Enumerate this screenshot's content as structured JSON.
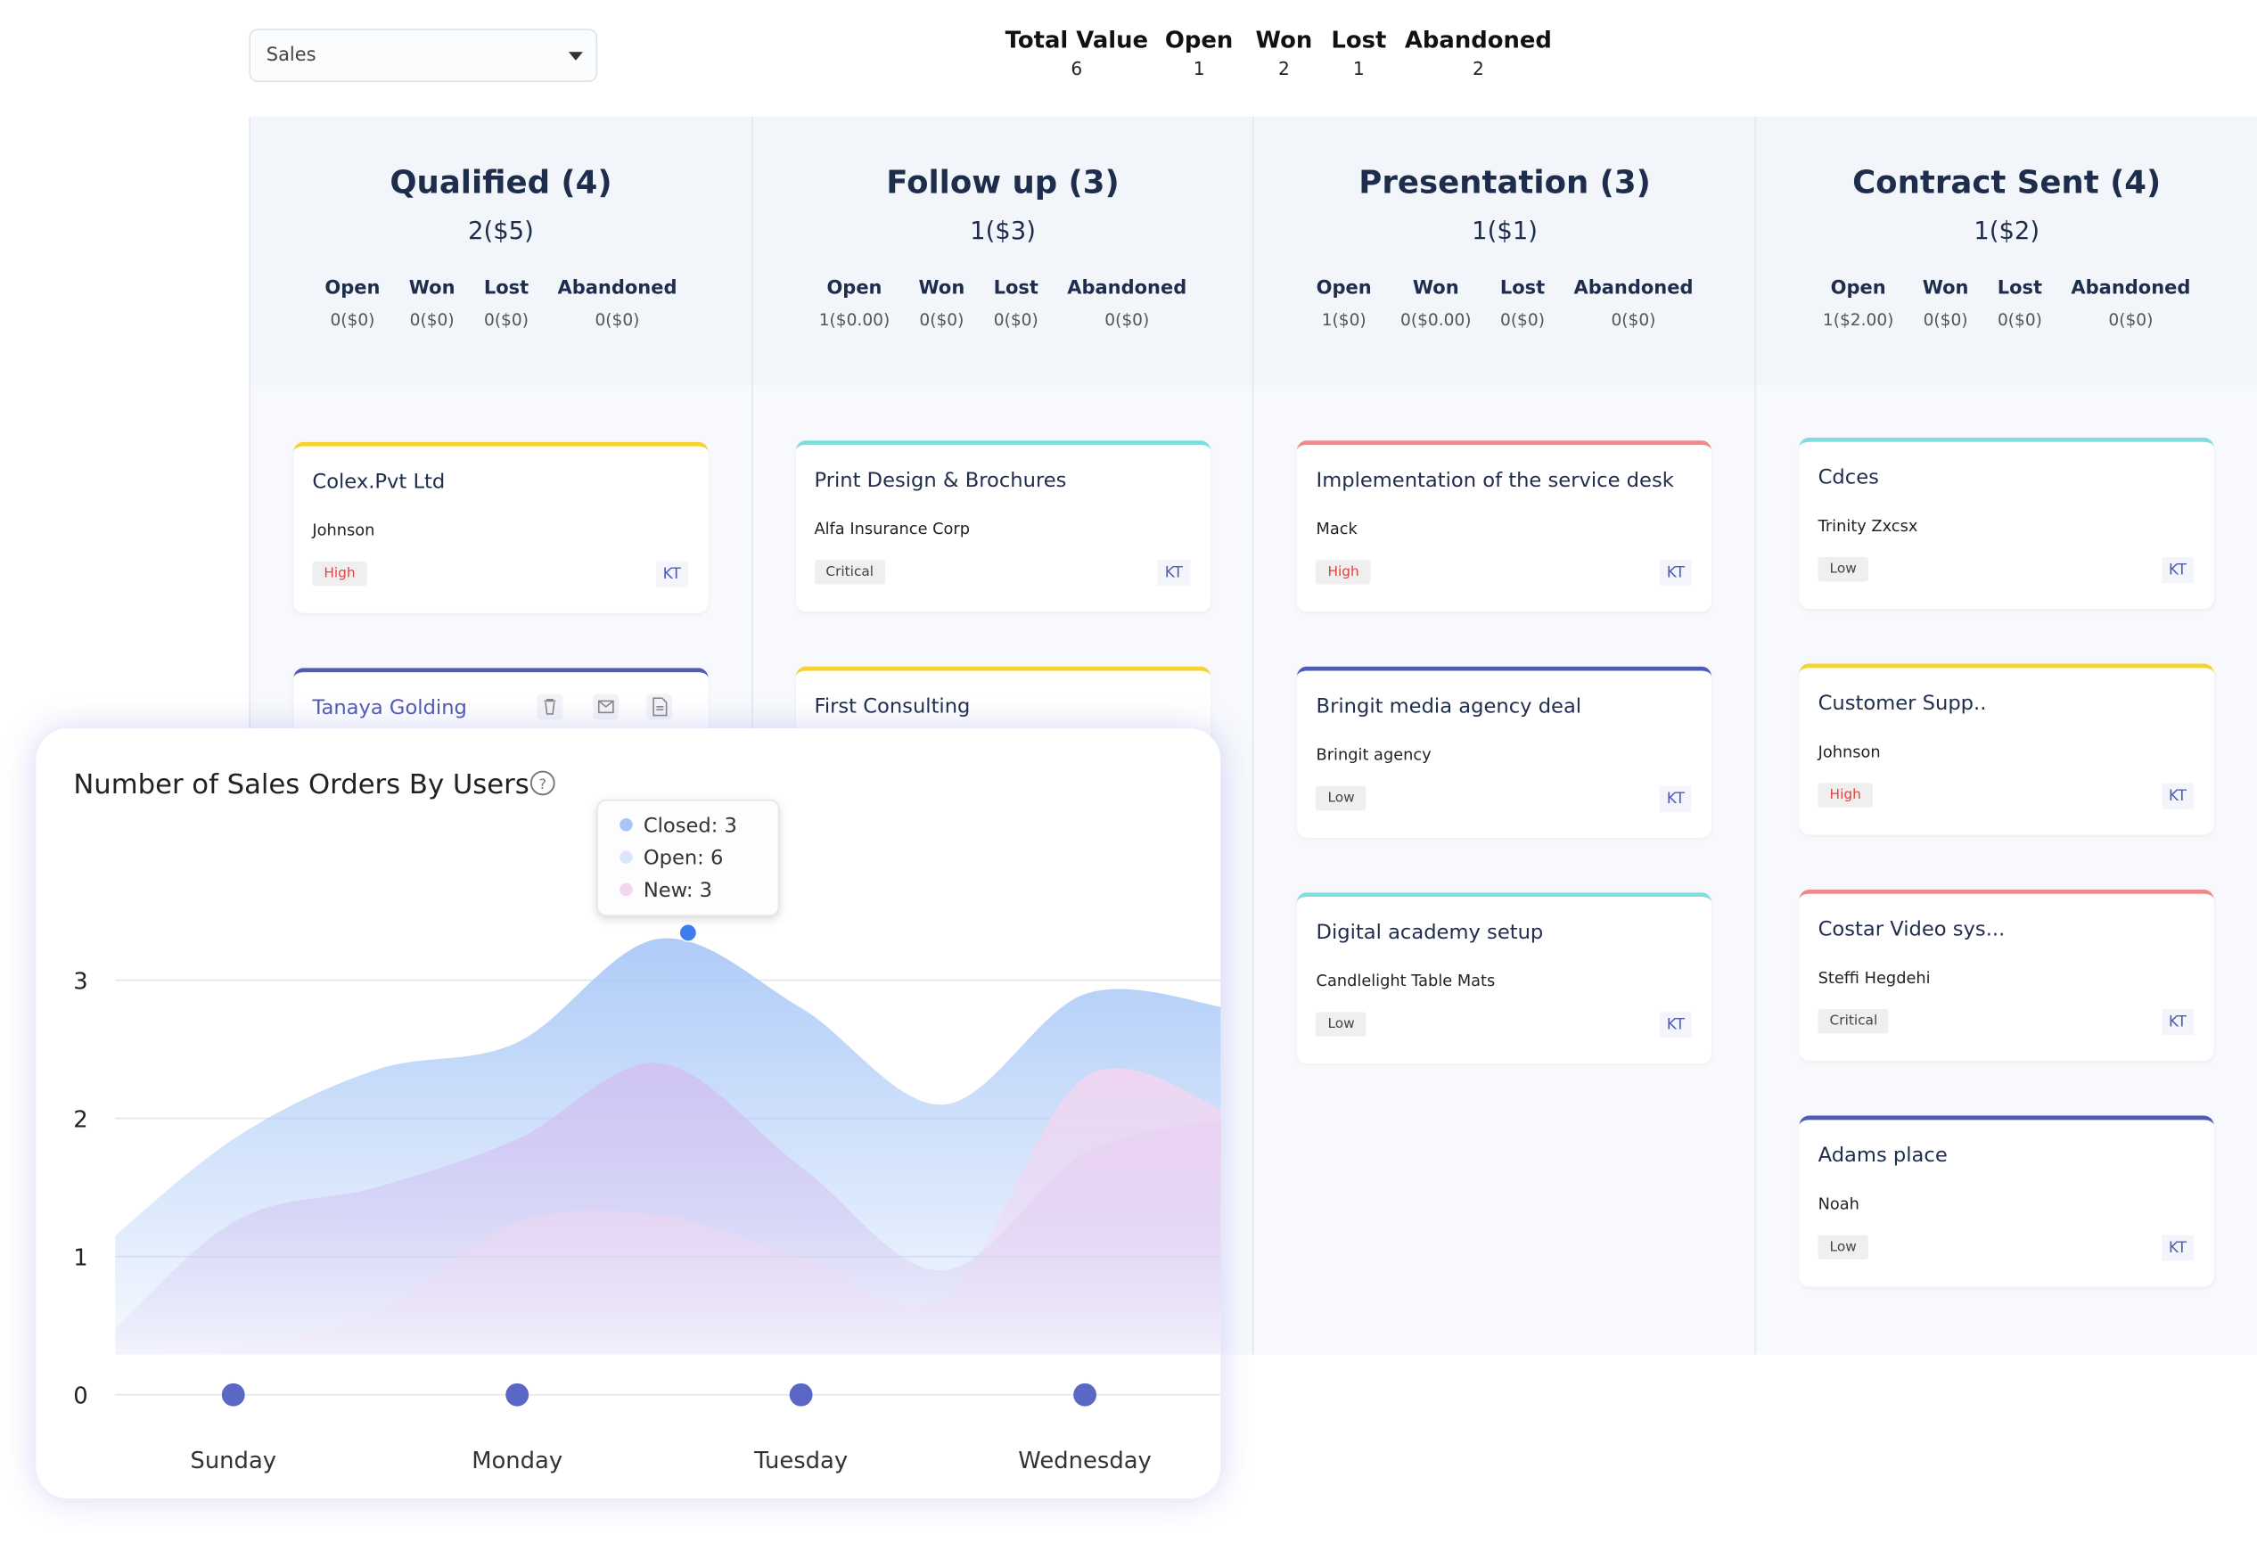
{
  "filter": "Sales",
  "summary": [
    {
      "label": "Total Value",
      "value": 6
    },
    {
      "label": "Open",
      "value": 1
    },
    {
      "label": "Won",
      "value": 2
    },
    {
      "label": "Lost",
      "value": 1
    },
    {
      "label": "Abandoned",
      "value": 2
    }
  ],
  "columns": [
    {
      "title": "Qualified (4)",
      "subtitle": "2($5)",
      "stats": [
        {
          "label": "Open",
          "value": "0($0)"
        },
        {
          "label": "Won",
          "value": "0($0)"
        },
        {
          "label": "Lost",
          "value": "0($0)"
        },
        {
          "label": "Abandoned",
          "value": "0($0)"
        }
      ],
      "cards": [
        {
          "title": "Colex.Pvt Ltd",
          "subtitle": "Johnson",
          "priority": "High",
          "owner": "KT",
          "color": "#f5d22e"
        },
        {
          "title": "Tanaya Golding",
          "color": "#4f5bb5"
        }
      ]
    },
    {
      "title": "Follow up (3)",
      "subtitle": "1($3)",
      "stats": [
        {
          "label": "Open",
          "value": "1($0.00)"
        },
        {
          "label": "Won",
          "value": "0($0)"
        },
        {
          "label": "Lost",
          "value": "0($0)"
        },
        {
          "label": "Abandoned",
          "value": "0($0)"
        }
      ],
      "cards": [
        {
          "title": "Print Design & Brochures",
          "subtitle": "Alfa Insurance Corp",
          "priority": "Critical",
          "owner": "KT",
          "color": "#7fdde0"
        },
        {
          "title": "First Consulting",
          "color": "#f5d22e"
        }
      ]
    },
    {
      "title": "Presentation (3)",
      "subtitle": "1($1)",
      "stats": [
        {
          "label": "Open",
          "value": "1($0)"
        },
        {
          "label": "Won",
          "value": "0($0.00)"
        },
        {
          "label": "Lost",
          "value": "0($0)"
        },
        {
          "label": "Abandoned",
          "value": "0($0)"
        }
      ],
      "cards": [
        {
          "title": "Implementation of the service desk",
          "subtitle": "Mack",
          "priority": "High",
          "owner": "KT",
          "color": "#ef8a8a"
        },
        {
          "title": "Bringit media agency deal",
          "subtitle": "Bringit agency",
          "priority": "Low",
          "owner": "KT",
          "color": "#4f5bb5"
        },
        {
          "title": "Digital academy setup",
          "subtitle": "Candlelight Table Mats",
          "priority": "Low",
          "owner": "KT",
          "color": "#7fdde0"
        }
      ]
    },
    {
      "title": "Contract Sent (4)",
      "subtitle": "1($2)",
      "stats": [
        {
          "label": "Open",
          "value": "1($2.00)"
        },
        {
          "label": "Won",
          "value": "0($0)"
        },
        {
          "label": "Lost",
          "value": "0($0)"
        },
        {
          "label": "Abandoned",
          "value": "0($0)"
        }
      ],
      "cards": [
        {
          "title": "Cdces",
          "subtitle": "Trinity Zxcsx",
          "priority": "Low",
          "owner": "KT",
          "color": "#7fdde0"
        },
        {
          "title": "Customer Supp..",
          "subtitle": "Johnson",
          "priority": "High",
          "owner": "KT",
          "color": "#f5d22e"
        },
        {
          "title": "Costar Video sys...",
          "subtitle": "Steffi Hegdehi",
          "priority": "Critical",
          "owner": "KT",
          "color": "#ef8a8a"
        },
        {
          "title": "Adams place",
          "subtitle": "Noah",
          "priority": "Low",
          "owner": "KT",
          "color": "#4f5bb5"
        }
      ]
    }
  ],
  "chart_data": {
    "type": "area",
    "title": "Number of Sales Orders By Users",
    "categories": [
      null,
      "Sunday",
      null,
      "Monday",
      null,
      "Tuesday",
      null,
      "Wednesday",
      null
    ],
    "series": [
      {
        "color": "#a6c6f7",
        "values": [
          1.0,
          1.85,
          2.35,
          2.55,
          3.3,
          2.8,
          2.1,
          2.9,
          2.8
        ]
      },
      {
        "color": "#d2c2f2",
        "values": [
          0.3,
          1.25,
          1.5,
          1.85,
          2.4,
          1.65,
          0.9,
          1.75,
          2.0
        ]
      },
      {
        "color": "#f3d6f1",
        "values": [
          0.3,
          0.35,
          0.6,
          1.25,
          1.3,
          1.0,
          0.7,
          2.3,
          2.05
        ]
      },
      {
        "color": "#5a67c4",
        "style": "dots",
        "values": [
          null,
          0,
          null,
          0,
          null,
          0,
          null,
          0,
          null
        ]
      }
    ],
    "ylim": [
      0,
      4
    ],
    "yticks": [
      0,
      1,
      2,
      3
    ],
    "grid": true,
    "tooltip": [
      {
        "text": "Closed: 3",
        "color": "#a6c6f7"
      },
      {
        "text": "Open: 6",
        "color": "#dbe5fb"
      },
      {
        "text": "New: 3",
        "color": "#f3d6f1"
      }
    ]
  }
}
